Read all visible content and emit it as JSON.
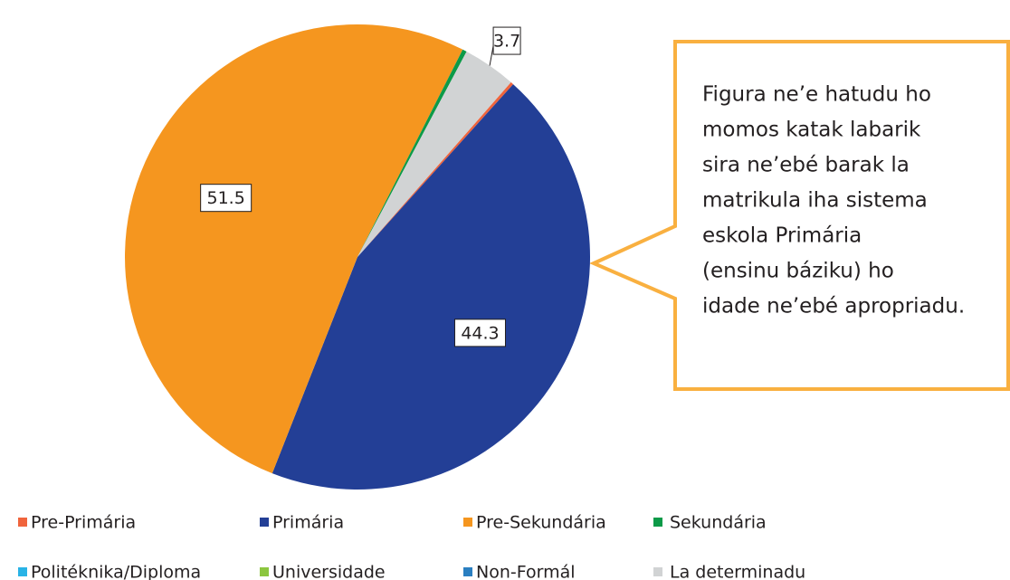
{
  "chart_data": {
    "type": "pie",
    "categories": [
      "Pre-Primária",
      "Primária",
      "Pre-Sekundária",
      "Sekundária",
      "Politéknika/Diploma",
      "Universidade",
      "Non-Formál",
      "La determinadu"
    ],
    "values": [
      0.2,
      44.3,
      51.5,
      0.3,
      0,
      0,
      0,
      3.7
    ],
    "colors": [
      "#f0643c",
      "#233f96",
      "#f5961f",
      "#0c9a48",
      "#29b3e6",
      "#8cc63f",
      "#2a7fc1",
      "#d1d3d4"
    ],
    "annotation": [
      "Figura ne’e hatudu ho",
      "momos katak labarik",
      "sira ne’ebé barak la",
      "matrikula iha sistema",
      "eskola Primária",
      "(ensinu báziku) ho",
      "idade ne’ebé apropriadu."
    ]
  }
}
